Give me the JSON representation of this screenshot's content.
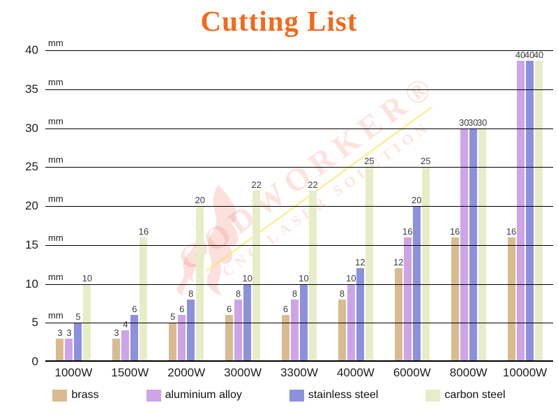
{
  "title": "Cutting List",
  "watermark": {
    "line1": "GODWORKER®",
    "line2": "CNC LASER SOLUTION"
  },
  "y_axis": {
    "unit": "mm",
    "ticks": [
      0,
      5,
      10,
      15,
      20,
      25,
      30,
      35,
      40
    ]
  },
  "colors": {
    "title": "#f4691a",
    "axis_text": "#1e1e1e",
    "bar_label": "#3d3d3d",
    "gridline": "#000000"
  },
  "chart_data": {
    "type": "bar",
    "title": "Cutting List",
    "categories": [
      "1000W",
      "1500W",
      "2000W",
      "3000W",
      "3300W",
      "4000W",
      "6000W",
      "8000W",
      "10000W"
    ],
    "series": [
      {
        "name": "brass",
        "color": "#d8bb8f",
        "values": [
          3,
          3,
          5,
          6,
          6,
          8,
          12,
          16,
          16
        ]
      },
      {
        "name": "aluminium alloy",
        "color": "#cda4e8",
        "values": [
          3,
          4,
          6,
          8,
          8,
          10,
          16,
          30,
          40
        ]
      },
      {
        "name": "stainless steel",
        "color": "#8c90dd",
        "values": [
          5,
          6,
          8,
          10,
          10,
          12,
          20,
          30,
          40
        ]
      },
      {
        "name": "carbon steel",
        "color": "#e6edc8",
        "values": [
          10,
          16,
          20,
          22,
          22,
          25,
          25,
          30,
          40
        ]
      }
    ],
    "xlabel": "",
    "ylabel": "mm",
    "ylim": [
      0,
      40
    ],
    "grid": true,
    "legend_position": "bottom",
    "value_labels": true
  }
}
